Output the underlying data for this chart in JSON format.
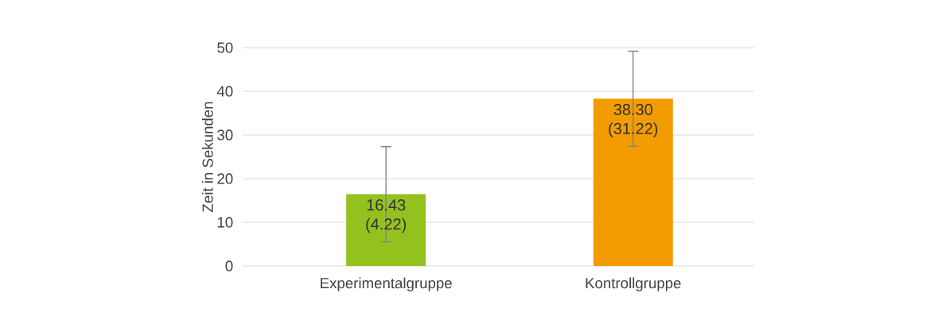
{
  "chart_data": {
    "type": "bar",
    "ylabel": "Zeit in Sekunden",
    "categories": [
      "Experimentalgruppe",
      "Kontrollgruppe"
    ],
    "values": [
      16.43,
      38.3
    ],
    "colors": [
      "#95c11f",
      "#f39c00"
    ],
    "errors": [
      10.9,
      10.9
    ],
    "value_labels": [
      "16.43 (4.22)",
      "38.30 (31.22)"
    ],
    "ylim": [
      0,
      50
    ],
    "yticks": [
      0,
      10,
      20,
      30,
      40,
      50
    ],
    "grid": "y"
  }
}
